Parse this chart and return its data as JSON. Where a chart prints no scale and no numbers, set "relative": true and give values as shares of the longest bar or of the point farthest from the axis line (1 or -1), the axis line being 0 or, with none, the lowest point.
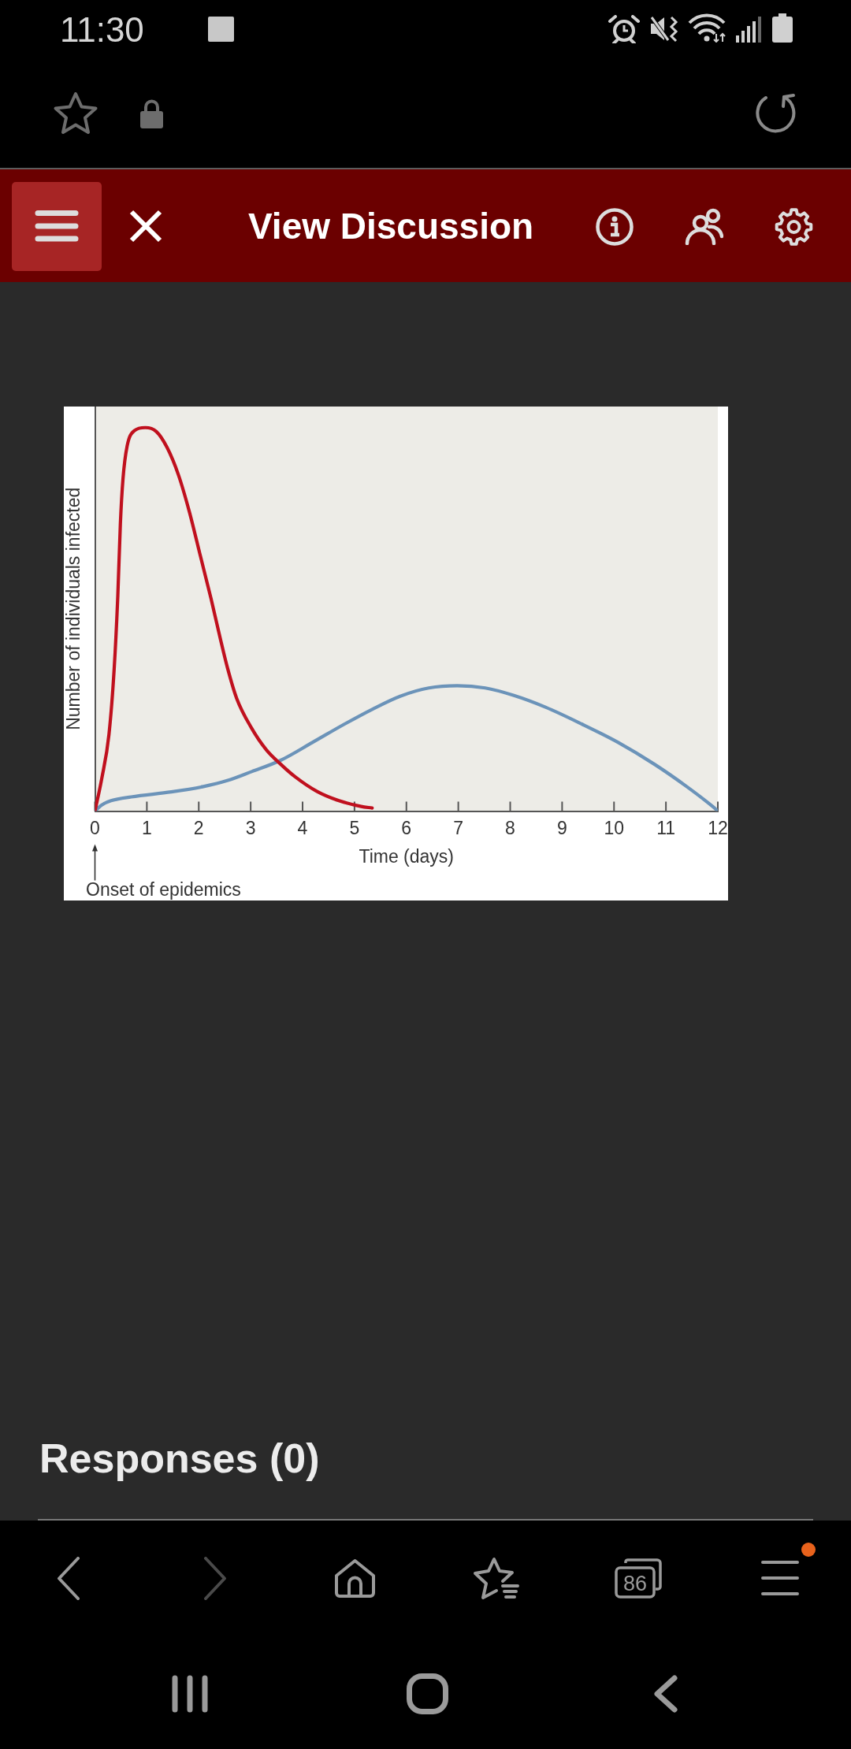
{
  "chart_data": {
    "type": "line",
    "xlabel": "Time (days)",
    "ylabel": "Number of individuals infected",
    "relative": true,
    "xlim": [
      0,
      12
    ],
    "xticks": [
      0,
      1,
      2,
      3,
      4,
      5,
      6,
      7,
      8,
      9,
      10,
      11,
      12
    ],
    "marker": "none",
    "series": [
      {
        "color": "#c0101e",
        "x": [
          0,
          0.13,
          0.27,
          0.37,
          0.44,
          0.49,
          0.54,
          0.62,
          0.76,
          0.97,
          1.18,
          1.39,
          1.61,
          1.82,
          2.03,
          2.24,
          2.42,
          2.56,
          2.73,
          3.01,
          3.3,
          3.58,
          3.86,
          4.28,
          4.7,
          5.13,
          5.34
        ],
        "values": [
          0,
          0.084,
          0.2,
          0.37,
          0.56,
          0.75,
          0.866,
          0.952,
          0.992,
          1.0,
          0.99,
          0.948,
          0.876,
          0.78,
          0.666,
          0.552,
          0.447,
          0.37,
          0.294,
          0.218,
          0.16,
          0.122,
          0.089,
          0.051,
          0.027,
          0.012,
          0.008
        ]
      },
      {
        "color": "#6b93b9",
        "x": [
          0,
          0.12,
          0.31,
          0.7,
          1.47,
          2.09,
          2.56,
          3.02,
          3.57,
          4.19,
          4.81,
          5.35,
          5.89,
          6.43,
          6.98,
          7.52,
          8.06,
          8.68,
          9.38,
          10.08,
          10.78,
          11.4,
          11.9,
          12
        ],
        "values": [
          0,
          0.015,
          0.027,
          0.037,
          0.05,
          0.064,
          0.08,
          0.103,
          0.132,
          0.179,
          0.227,
          0.266,
          0.3,
          0.321,
          0.327,
          0.321,
          0.302,
          0.271,
          0.227,
          0.179,
          0.122,
          0.064,
          0.012,
          0
        ]
      }
    ],
    "annotations": [
      "Onset of epidemics",
      "11:30",
      "View Discussion",
      "Responses (0)",
      "86"
    ]
  }
}
